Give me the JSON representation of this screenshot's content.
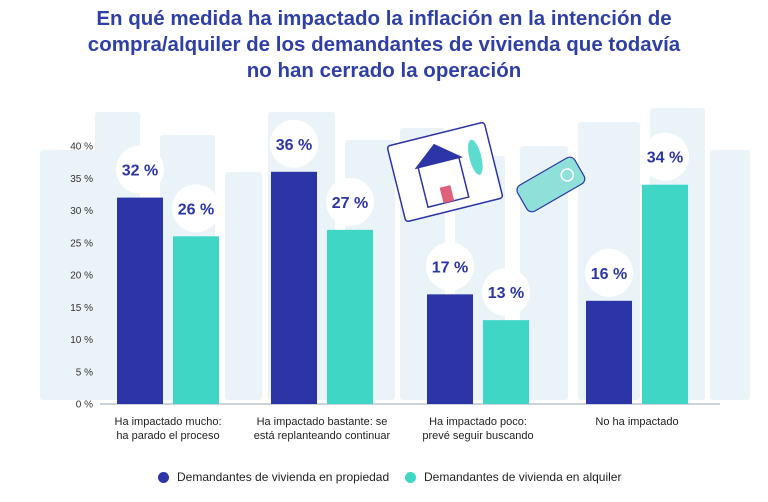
{
  "title_lines": [
    "En qué medida ha impactado la inflación en la intención de",
    "compra/alquiler de los demandantes de vivienda que todavía",
    "no han cerrado la operación"
  ],
  "colors": {
    "propiedad": "#2b35a6",
    "alquiler": "#3fd6c6",
    "title": "#2f3fa8",
    "skyline": "#eaf3f8"
  },
  "chart_data": {
    "type": "bar",
    "categories": [
      [
        "Ha impactado mucho:",
        "ha parado el proceso"
      ],
      [
        "Ha impactado bastante: se",
        "está replanteando continuar"
      ],
      [
        "Ha impactado poco:",
        "prevé seguir buscando"
      ],
      [
        "No ha impactado"
      ]
    ],
    "series": [
      {
        "name": "Demandantes de vivienda en propiedad",
        "values": [
          32,
          36,
          17,
          16
        ],
        "labels": [
          "32 %",
          "36 %",
          "17 %",
          "16 %"
        ]
      },
      {
        "name": "Demandantes de vivienda en alquiler",
        "values": [
          26,
          27,
          13,
          34
        ],
        "labels": [
          "26 %",
          "27 %",
          "13 %",
          "34 %"
        ]
      }
    ],
    "ylim": [
      0,
      40
    ],
    "yticks": [
      0,
      5,
      10,
      15,
      20,
      25,
      30,
      35,
      40
    ],
    "ytick_labels": [
      "0 %",
      "5 %",
      "10 %",
      "15 %",
      "20 %",
      "25 %",
      "30 %",
      "35 %",
      "40 %"
    ],
    "legend_position": "bottom",
    "grid": false
  }
}
